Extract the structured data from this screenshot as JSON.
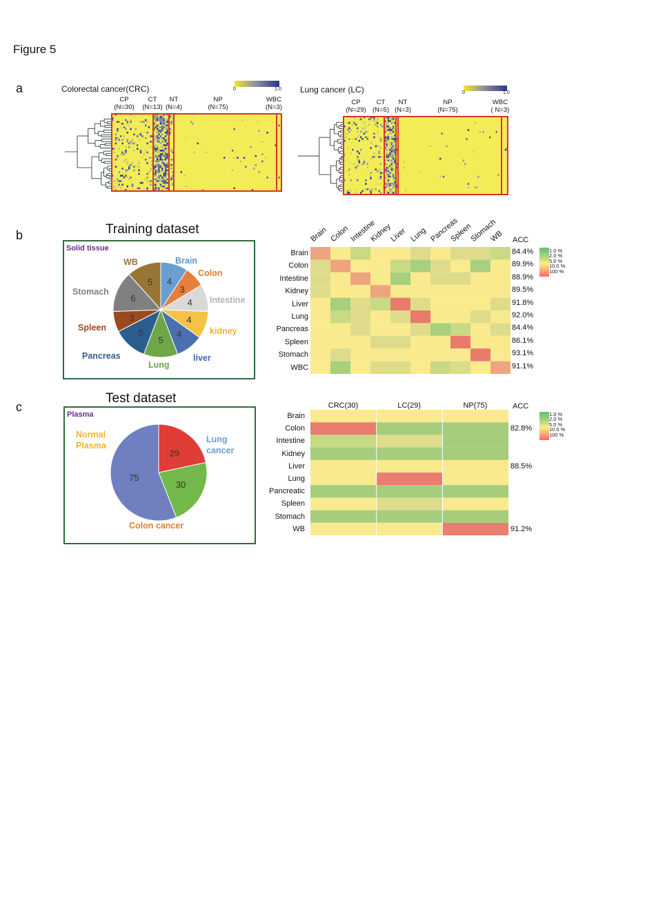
{
  "figure_title": "Figure 5",
  "panels": {
    "a": "a",
    "b": "b",
    "c": "c"
  },
  "heatmaps": [
    {
      "title": "Colorectal cancer(CRC)",
      "colorbar_min": "0",
      "colorbar_max": "1.0",
      "groups": [
        {
          "name": "CP",
          "n": "(N=30)"
        },
        {
          "name": "CT",
          "n": "(N=13)"
        },
        {
          "name": "NT",
          "n": "(N=4)"
        },
        {
          "name": "NP",
          "n": "(N=75)"
        },
        {
          "name": "WBC",
          "n": "(N=3)"
        }
      ]
    },
    {
      "title": "Lung cancer (LC)",
      "colorbar_min": "0",
      "colorbar_max": "1.0",
      "groups": [
        {
          "name": "CP",
          "n": "(N=29)"
        },
        {
          "name": "CT",
          "n": "(N=5)"
        },
        {
          "name": "NT",
          "n": "(N=3)"
        },
        {
          "name": "NP",
          "n": "(N=75)"
        },
        {
          "name": "WBC",
          "n": "( N=3)"
        }
      ]
    }
  ],
  "training_pie": {
    "title": "Training dataset",
    "box_label": "Solid tissue",
    "slices": [
      {
        "label": "Brain",
        "value": 4,
        "color": "#6a9fd4",
        "label_color": "#5b92d0"
      },
      {
        "label": "Colon",
        "value": 3,
        "color": "#e67e3c",
        "label_color": "#e5762e"
      },
      {
        "label": "Intestine",
        "value": 4,
        "color": "#d9d9d9",
        "label_color": "#b3b3b3"
      },
      {
        "label": "kidney",
        "value": 4,
        "color": "#f6c245",
        "label_color": "#f2b52a"
      },
      {
        "label": "liver",
        "value": 4,
        "color": "#4b6fb0",
        "label_color": "#3f66ae"
      },
      {
        "label": "Lung",
        "value": 5,
        "color": "#70a64a",
        "label_color": "#6da544"
      },
      {
        "label": "Pancreas",
        "value": 5,
        "color": "#2c5d8f",
        "label_color": "#2c5d8f"
      },
      {
        "label": "Spleen",
        "value": 3,
        "color": "#9b4a1e",
        "label_color": "#9b4a1e"
      },
      {
        "label": "Stomach",
        "value": 6,
        "color": "#808080",
        "label_color": "#7f7f7f"
      },
      {
        "label": "WB",
        "value": 5,
        "color": "#987535",
        "label_color": "#987535"
      }
    ]
  },
  "test_pie": {
    "title": "Test dataset",
    "box_label": "Plasma",
    "slices": [
      {
        "label": "Lung cancer",
        "label_lines": [
          "Lung",
          "cancer"
        ],
        "value": 29,
        "color": "#e03d36",
        "label_color": "#6a9fd4"
      },
      {
        "label": "Colon cancer",
        "label_lines": [
          "Colon cancer"
        ],
        "value": 30,
        "color": "#73b84a",
        "label_color": "#e0802e"
      },
      {
        "label": "Normal Plasma",
        "label_lines": [
          "Normal",
          "Plasma"
        ],
        "value": 75,
        "color": "#6f7fbf",
        "label_color": "#f2b52a"
      }
    ]
  },
  "training_matrix": {
    "columns": [
      "Brain",
      "Colon",
      "Intestine",
      "Kidney",
      "Liver",
      "Lung",
      "Pancreas",
      "Spleen",
      "Stomach",
      "WB"
    ],
    "rows": [
      "Brain",
      "Colon",
      "Intestine",
      "Kidney",
      "Liver",
      "Lung",
      "Pancreas",
      "Spleen",
      "Stomach",
      "WBC"
    ],
    "acc_header": "ACC",
    "acc": [
      "84.4%",
      "89.9%",
      "88.9%",
      "89.5%",
      "91.8%",
      "92.0%",
      "84.4%",
      "86.1%",
      "93.1%",
      "91.1%"
    ],
    "levels": [
      [
        4,
        0,
        2,
        0,
        0,
        1,
        0,
        1,
        1,
        2
      ],
      [
        1,
        4,
        0,
        0,
        2,
        3,
        1,
        0,
        3,
        0
      ],
      [
        1,
        0,
        4,
        0,
        3,
        0,
        1,
        1,
        0,
        0
      ],
      [
        1,
        0,
        0,
        4,
        0,
        0,
        0,
        0,
        0,
        0
      ],
      [
        0,
        3,
        1,
        2,
        5,
        1,
        0,
        0,
        0,
        1
      ],
      [
        0,
        2,
        1,
        0,
        1,
        5,
        0,
        0,
        1,
        0
      ],
      [
        0,
        0,
        1,
        0,
        0,
        1,
        3,
        2,
        0,
        1
      ],
      [
        0,
        0,
        0,
        1,
        1,
        0,
        0,
        5,
        0,
        0
      ],
      [
        0,
        1,
        0,
        0,
        0,
        0,
        0,
        0,
        5,
        0
      ],
      [
        0,
        3,
        0,
        1,
        1,
        0,
        2,
        1,
        0,
        4
      ]
    ]
  },
  "test_matrix": {
    "columns": [
      "CRC(30)",
      "LC(29)",
      "NP(75)"
    ],
    "rows": [
      "Brain",
      "Colon",
      "Intestine",
      "Kidney",
      "Liver",
      "Lung",
      "Pancreatic",
      "Spleen",
      "Stomach",
      "WB"
    ],
    "acc_header": "ACC",
    "acc": [
      "",
      "82.8%",
      "",
      "",
      "88.5%",
      "",
      "",
      "",
      "",
      "91.2%"
    ],
    "levels": [
      [
        0,
        0,
        0
      ],
      [
        5,
        3,
        3
      ],
      [
        2,
        1,
        3
      ],
      [
        3,
        3,
        3
      ],
      [
        0,
        0,
        0
      ],
      [
        0,
        5,
        0
      ],
      [
        3,
        3,
        3
      ],
      [
        0,
        1,
        0
      ],
      [
        3,
        3,
        3
      ],
      [
        0,
        0,
        5
      ]
    ]
  },
  "legend": {
    "labels": [
      "1.0 %",
      "2.0 %",
      "5.0 %",
      "10.0 %",
      "100 %"
    ],
    "colors": [
      "#63be7b",
      "#a9d27f",
      "#ffeb84",
      "#fbaa77",
      "#f8696b"
    ]
  }
}
